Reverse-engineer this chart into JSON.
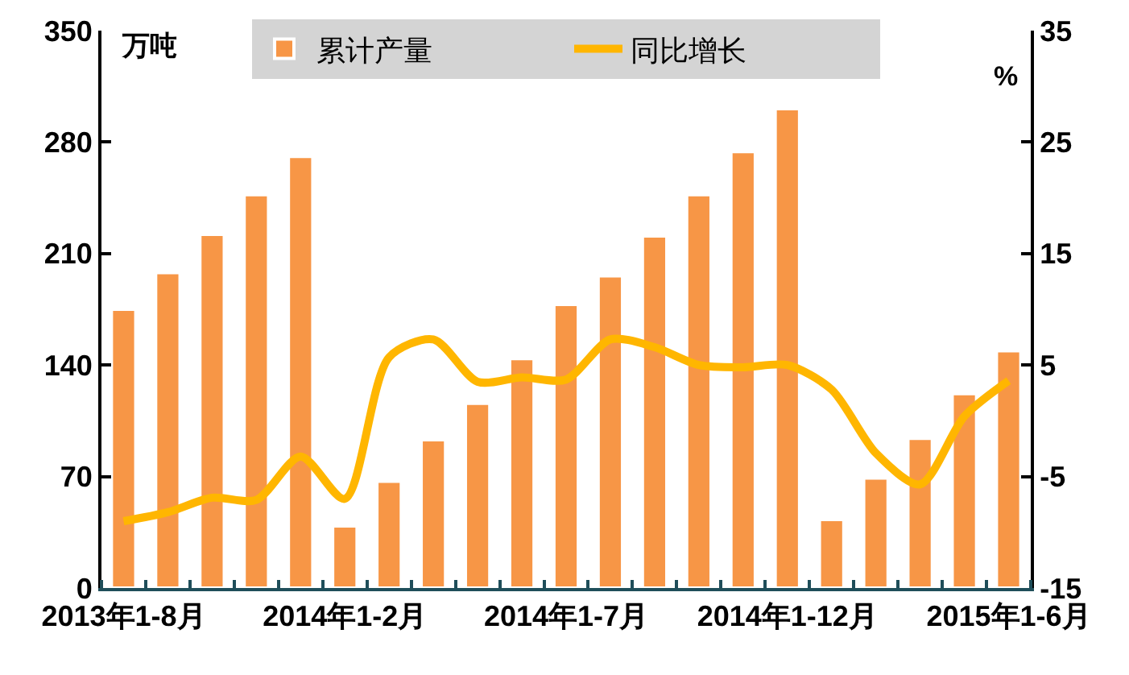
{
  "chart_data": {
    "type": "bar",
    "categories": [
      "2013年1-8月",
      null,
      null,
      null,
      null,
      "2014年1-2月",
      null,
      null,
      null,
      null,
      "2014年1-7月",
      null,
      null,
      null,
      null,
      "2014年1-12月",
      null,
      null,
      null,
      null,
      "2015年1-6月"
    ],
    "series": [
      {
        "name": "累计产量",
        "color": "#f79646",
        "values": [
          175,
          198,
          222,
          247,
          271,
          39,
          67,
          93,
          116,
          144,
          178,
          196,
          221,
          247,
          274,
          301,
          43,
          69,
          94,
          122,
          149
        ]
      },
      {
        "name": "同比增长",
        "type": "line",
        "axis": "y2",
        "color": "#ffb600",
        "values": [
          -9.0,
          -8.2,
          -6.9,
          -7.1,
          -3.2,
          -7.0,
          5.7,
          7.3,
          3.5,
          3.9,
          3.7,
          7.3,
          6.6,
          5.0,
          4.8,
          5.0,
          2.8,
          -2.9,
          -5.7,
          0.4,
          3.6
        ]
      }
    ],
    "ylabel": "万吨",
    "y2label": "%",
    "ylim": [
      0,
      350
    ],
    "yticks": [
      0,
      70,
      140,
      210,
      280,
      350
    ],
    "y2lim": [
      -15,
      35
    ],
    "y2ticks": [
      -15,
      -5,
      5,
      15,
      25,
      35
    ],
    "legend": "top"
  }
}
